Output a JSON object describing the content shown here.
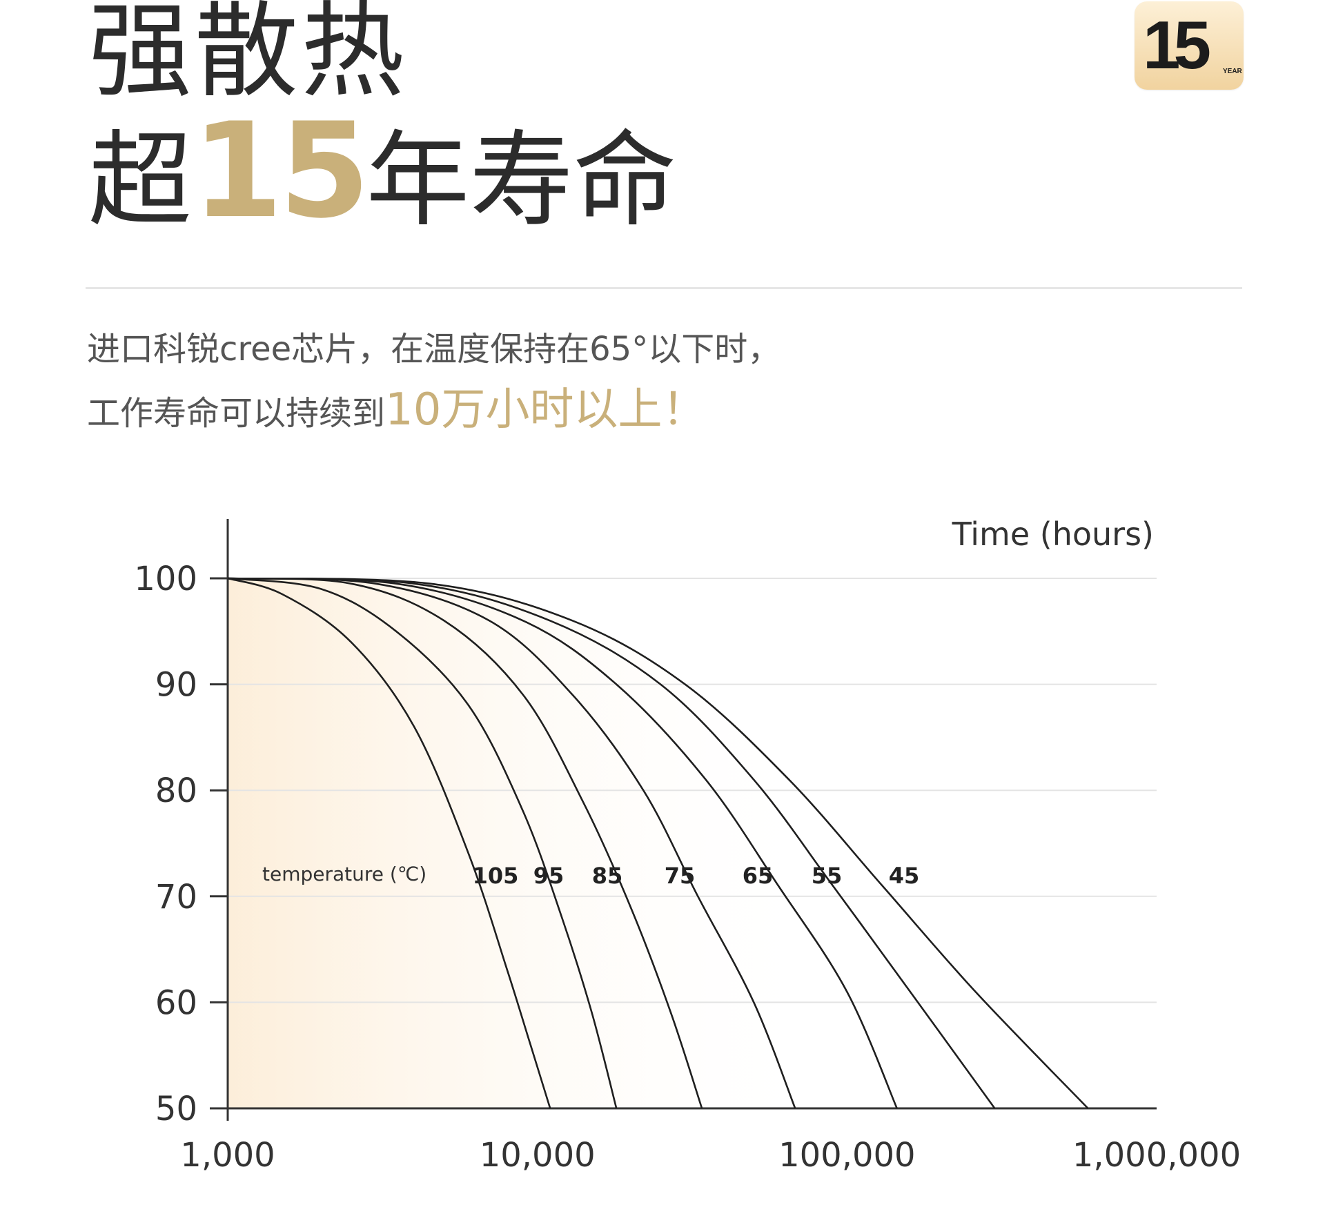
{
  "headline": {
    "line1": "强散热",
    "line2_prefix": "超",
    "line2_number": "15",
    "line2_suffix": "年寿命"
  },
  "badge": {
    "number": "15",
    "unit": "YEAR"
  },
  "description": {
    "line1": "进口科锐cree芯片，在温度保持在65°以下时，",
    "line2_prefix": "工作寿命可以持续到",
    "line2_highlight": "10万小时以上！"
  },
  "colors": {
    "accent": "#c9b07a",
    "text": "#2c2c2c",
    "curve": "#1f1f1f",
    "grid": "#e4e4e4",
    "fill": "#fdf2e4"
  },
  "chart_data": {
    "type": "line",
    "title": "",
    "xlabel": "Time (hours)",
    "ylabel": "",
    "x_scale": "log",
    "xlim": [
      1000,
      1000000
    ],
    "ylim": [
      50,
      100
    ],
    "x_ticks": [
      1000,
      10000,
      100000,
      1000000
    ],
    "x_tick_labels": [
      "1,000",
      "10,000",
      "100,000",
      "1,000,000"
    ],
    "y_ticks": [
      50,
      60,
      70,
      80,
      90,
      100
    ],
    "y_tick_labels": [
      "50",
      "60",
      "70",
      "80",
      "90",
      "100"
    ],
    "grid": true,
    "legend": "none",
    "series_label": "temperature (℃)",
    "series": [
      {
        "name": "105",
        "x": [
          1000,
          1500,
          2500,
          4000,
          6000,
          8000,
          9500,
          11000
        ],
        "y": [
          100,
          98.5,
          94,
          86,
          74,
          63,
          56,
          50
        ]
      },
      {
        "name": "95",
        "x": [
          1000,
          2000,
          3500,
          6000,
          9000,
          12000,
          15000,
          18000
        ],
        "y": [
          100,
          99,
          95,
          88,
          78,
          68,
          59,
          50
        ]
      },
      {
        "name": "85",
        "x": [
          1000,
          2500,
          5000,
          9000,
          14000,
          20000,
          27000,
          34000
        ],
        "y": [
          100,
          99.5,
          96,
          89,
          79,
          69,
          59,
          50
        ]
      },
      {
        "name": "75",
        "x": [
          1000,
          3000,
          7000,
          13000,
          22000,
          33000,
          50000,
          68000
        ],
        "y": [
          100,
          99.5,
          96,
          89,
          80,
          70,
          60,
          50
        ]
      },
      {
        "name": "65",
        "x": [
          1000,
          3500,
          9000,
          18000,
          35000,
          60000,
          100000,
          145000
        ],
        "y": [
          100,
          99.5,
          96,
          90,
          81,
          71,
          61,
          50
        ]
      },
      {
        "name": "55",
        "x": [
          1000,
          4000,
          11000,
          25000,
          50000,
          90000,
          160000,
          300000
        ],
        "y": [
          100,
          99.5,
          96,
          90,
          81,
          71,
          61,
          50
        ]
      },
      {
        "name": "45",
        "x": [
          1000,
          4500,
          13000,
          30000,
          65000,
          130000,
          260000,
          600000
        ],
        "y": [
          100,
          99.5,
          96,
          90,
          81,
          71,
          61,
          50
        ]
      }
    ]
  }
}
